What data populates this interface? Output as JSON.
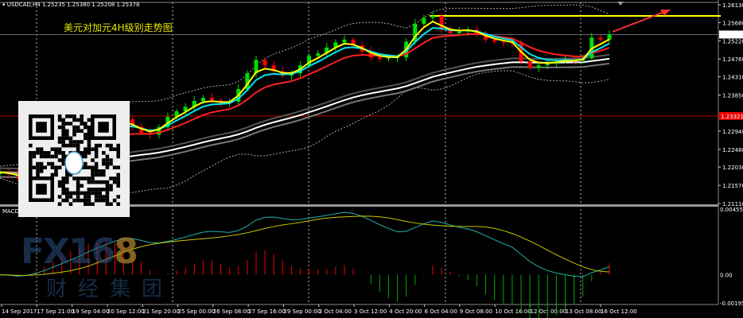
{
  "header": {
    "symbol": "USDCAD,H4",
    "ohlc": "1.25235 1.25380 1.25208 1.25378"
  },
  "title": "美元对加元4H级别走势图",
  "macd_label": "MACD",
  "watermark": {
    "brand": "FX168",
    "sub": "财经集团"
  },
  "colors": {
    "bull": "#00e000",
    "bear": "#ff0000",
    "ma_fast": "#ffff00",
    "ma_mid": "#00e5ee",
    "ma_slow": "#ff2020",
    "ma_long": "#ffffff",
    "hline": "#ffff00",
    "support": "#c00000",
    "macd_main": "#20b2aa",
    "macd_signal": "#c8c800"
  },
  "chart_data": [
    {
      "type": "candlestick",
      "symbol": "USDCAD",
      "timeframe": "H4",
      "ylim": [
        1.2111,
        1.2613
      ],
      "y_ticks": [
        "1.26130",
        "1.25680",
        "1.25220",
        "1.24760",
        "1.24310",
        "1.23850",
        "1.22940",
        "1.22480",
        "1.22030",
        "1.21570",
        "1.21110"
      ],
      "current_price": "1.25378",
      "marked_level": "1.23321",
      "resistance_level": 1.2585,
      "x_ticks": [
        "14 Sep 2017",
        "17 Sep 21:00",
        "19 Sep 04:00",
        "20 Sep 12:00",
        "21 Sep 20:00",
        "25 Sep 00:00",
        "26 Sep 08:00",
        "27 Sep 16:00",
        "29 Sep 00:00",
        "2 Oct 04:00",
        "3 Oct 12:00",
        "4 Oct 20:00",
        "6 Oct 04:00",
        "9 Oct 08:00",
        "10 Oct 16:00",
        "12 Oct 00:00",
        "13 Oct 08:00",
        "16 Oct 12:00"
      ],
      "close": [
        1.219,
        1.2185,
        1.2178,
        1.2195,
        1.221,
        1.2225,
        1.224,
        1.225,
        1.2262,
        1.2274,
        1.229,
        1.23,
        1.231,
        1.2318,
        1.2324,
        1.2305,
        1.229,
        1.2285,
        1.2304,
        1.233,
        1.2344,
        1.2355,
        1.237,
        1.2378,
        1.2372,
        1.2365,
        1.2368,
        1.24,
        1.244,
        1.2474,
        1.246,
        1.2445,
        1.2434,
        1.244,
        1.246,
        1.2484,
        1.249,
        1.2505,
        1.2518,
        1.2525,
        1.251,
        1.2495,
        1.248,
        1.2476,
        1.2478,
        1.248,
        1.252,
        1.2565,
        1.258,
        1.2585,
        1.255,
        1.2541,
        1.2545,
        1.255,
        1.2541,
        1.2525,
        1.252,
        1.2518,
        1.2515,
        1.247,
        1.2454,
        1.246,
        1.2464,
        1.247,
        1.2475,
        1.2472,
        1.2478,
        1.253,
        1.2525,
        1.25378
      ]
    },
    {
      "type": "macd",
      "ylim": [
        -0.00195,
        0.004553
      ],
      "y_ticks": [
        "0.004553",
        "0.00",
        "-0.00195"
      ]
    }
  ]
}
